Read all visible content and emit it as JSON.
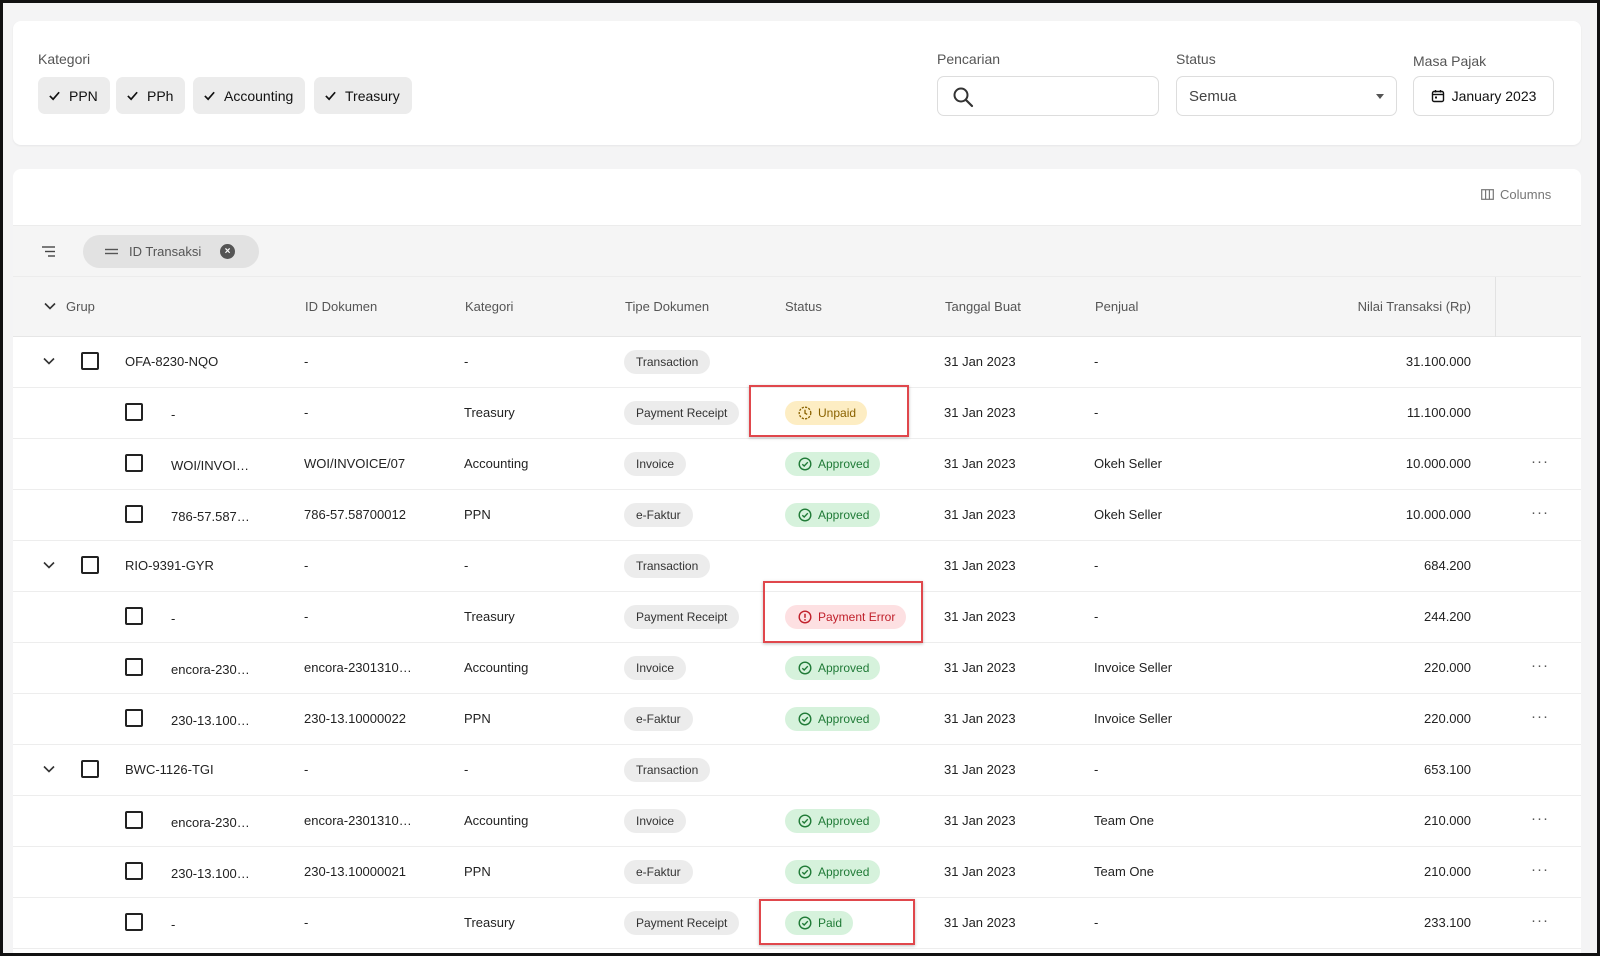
{
  "filters": {
    "kategori_label": "Kategori",
    "chips": [
      {
        "label": "PPN"
      },
      {
        "label": "PPh"
      },
      {
        "label": "Accounting"
      },
      {
        "label": "Treasury"
      }
    ],
    "pencarian_label": "Pencarian",
    "search_value": "",
    "status_label": "Status",
    "status_value": "Semua",
    "masa_pajak_label": "Masa Pajak",
    "masa_pajak_value": "January 2023"
  },
  "table": {
    "columns_button": "Columns",
    "group_pill": "ID Transaksi",
    "headers": {
      "grup": "Grup",
      "id_dokumen": "ID Dokumen",
      "kategori": "Kategori",
      "tipe_dokumen": "Tipe Dokumen",
      "status": "Status",
      "tanggal_buat": "Tanggal Buat",
      "penjual": "Penjual",
      "nilai": "Nilai Transaksi (Rp)"
    },
    "rows": [
      {
        "group": true,
        "name": "OFA-8230-NQO",
        "id_dokumen": "-",
        "kategori": "-",
        "tipe": "Transaction",
        "status": "",
        "status_type": "",
        "tanggal": "31 Jan 2023",
        "penjual": "-",
        "nilai": "31.100.000",
        "more": false
      },
      {
        "group": false,
        "name": "-",
        "id_dokumen": "-",
        "kategori": "Treasury",
        "tipe": "Payment Receipt",
        "status": "Unpaid",
        "status_type": "unpaid",
        "tanggal": "31 Jan 2023",
        "penjual": "-",
        "nilai": "11.100.000",
        "more": false
      },
      {
        "group": false,
        "name": "WOI/INVOI…",
        "id_dokumen": "WOI/INVOICE/07",
        "kategori": "Accounting",
        "tipe": "Invoice",
        "status": "Approved",
        "status_type": "approved",
        "tanggal": "31 Jan 2023",
        "penjual": "Okeh Seller",
        "nilai": "10.000.000",
        "more": true
      },
      {
        "group": false,
        "name": "786-57.587…",
        "id_dokumen": "786-57.58700012",
        "kategori": "PPN",
        "tipe": "e-Faktur",
        "status": "Approved",
        "status_type": "approved",
        "tanggal": "31 Jan 2023",
        "penjual": "Okeh Seller",
        "nilai": "10.000.000",
        "more": true
      },
      {
        "group": true,
        "name": "RIO-9391-GYR",
        "id_dokumen": "-",
        "kategori": "-",
        "tipe": "Transaction",
        "status": "",
        "status_type": "",
        "tanggal": "31 Jan 2023",
        "penjual": "-",
        "nilai": "684.200",
        "more": false
      },
      {
        "group": false,
        "name": "-",
        "id_dokumen": "-",
        "kategori": "Treasury",
        "tipe": "Payment Receipt",
        "status": "Payment Error",
        "status_type": "error",
        "tanggal": "31 Jan 2023",
        "penjual": "-",
        "nilai": "244.200",
        "more": false
      },
      {
        "group": false,
        "name": "encora-230…",
        "id_dokumen": "encora-2301310…",
        "kategori": "Accounting",
        "tipe": "Invoice",
        "status": "Approved",
        "status_type": "approved",
        "tanggal": "31 Jan 2023",
        "penjual": "Invoice Seller",
        "nilai": "220.000",
        "more": true
      },
      {
        "group": false,
        "name": "230-13.100…",
        "id_dokumen": "230-13.10000022",
        "kategori": "PPN",
        "tipe": "e-Faktur",
        "status": "Approved",
        "status_type": "approved",
        "tanggal": "31 Jan 2023",
        "penjual": "Invoice Seller",
        "nilai": "220.000",
        "more": true
      },
      {
        "group": true,
        "name": "BWC-1126-TGI",
        "id_dokumen": "-",
        "kategori": "-",
        "tipe": "Transaction",
        "status": "",
        "status_type": "",
        "tanggal": "31 Jan 2023",
        "penjual": "-",
        "nilai": "653.100",
        "more": false
      },
      {
        "group": false,
        "name": "encora-230…",
        "id_dokumen": "encora-2301310…",
        "kategori": "Accounting",
        "tipe": "Invoice",
        "status": "Approved",
        "status_type": "approved",
        "tanggal": "31 Jan 2023",
        "penjual": "Team One",
        "nilai": "210.000",
        "more": true
      },
      {
        "group": false,
        "name": "230-13.100…",
        "id_dokumen": "230-13.10000021",
        "kategori": "PPN",
        "tipe": "e-Faktur",
        "status": "Approved",
        "status_type": "approved",
        "tanggal": "31 Jan 2023",
        "penjual": "Team One",
        "nilai": "210.000",
        "more": true
      },
      {
        "group": false,
        "name": "-",
        "id_dokumen": "-",
        "kategori": "Treasury",
        "tipe": "Payment Receipt",
        "status": "Paid",
        "status_type": "paid",
        "tanggal": "31 Jan 2023",
        "penjual": "-",
        "nilai": "233.100",
        "more": true
      }
    ]
  },
  "icons": {
    "chip_check": "check-icon",
    "search": "search-icon",
    "calendar": "calendar-icon",
    "columns": "columns-icon",
    "group_toggle": "list-tree-icon",
    "remove": "close-circle-icon",
    "expand": "chevron-down-icon",
    "approved": "check-circle-icon",
    "unpaid": "clock-icon",
    "error": "alert-circle-icon",
    "more": "more-horizontal-icon"
  },
  "colors": {
    "approved_bg": "#d6f2dc",
    "approved_text": "#1f7a36",
    "unpaid_bg": "#fdedc3",
    "unpaid_text": "#8a6200",
    "error_bg": "#fde0e2",
    "error_text": "#c0202b",
    "highlight": "#e0474c"
  }
}
